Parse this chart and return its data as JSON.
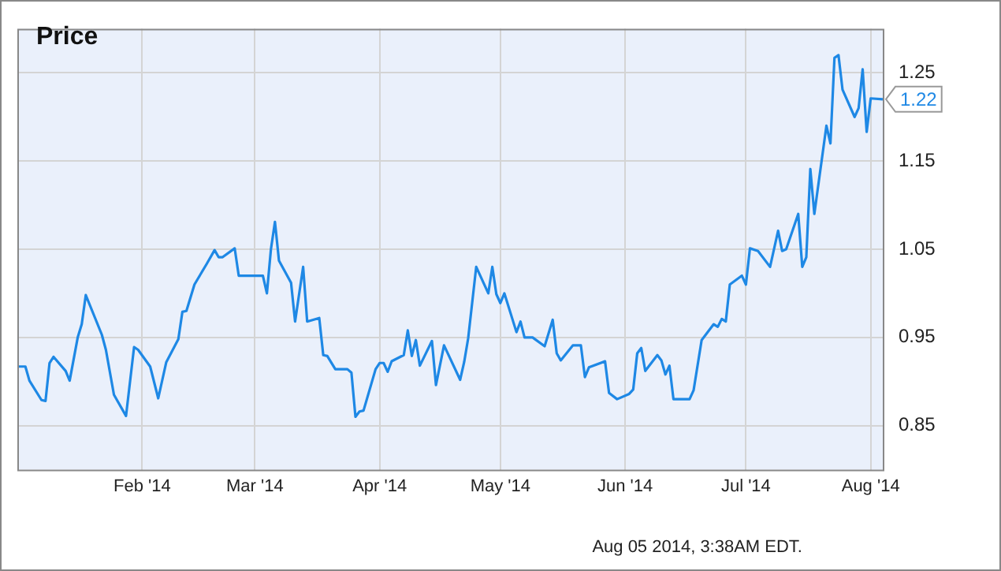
{
  "chart_data": {
    "type": "line",
    "title": "Price",
    "annotations": [
      "Aug 05 2014, 3:38AM EDT."
    ],
    "x": [
      "2014-01-01",
      "2014-01-03",
      "2014-01-04",
      "2014-01-07",
      "2014-01-08",
      "2014-01-09",
      "2014-01-10",
      "2014-01-13",
      "2014-01-14",
      "2014-01-16",
      "2014-01-17",
      "2014-01-18",
      "2014-01-22",
      "2014-01-23",
      "2014-01-25",
      "2014-01-28",
      "2014-01-30",
      "2014-01-31",
      "2014-02-03",
      "2014-02-05",
      "2014-02-07",
      "2014-02-10",
      "2014-02-11",
      "2014-02-12",
      "2014-02-14",
      "2014-02-17",
      "2014-02-19",
      "2014-02-20",
      "2014-02-21",
      "2014-02-24",
      "2014-02-25",
      "2014-03-03",
      "2014-03-04",
      "2014-03-05",
      "2014-03-06",
      "2014-03-07",
      "2014-03-10",
      "2014-03-11",
      "2014-03-13",
      "2014-03-14",
      "2014-03-17",
      "2014-03-18",
      "2014-03-19",
      "2014-03-21",
      "2014-03-24",
      "2014-03-25",
      "2014-03-26",
      "2014-03-27",
      "2014-03-28",
      "2014-03-31",
      "2014-04-01",
      "2014-04-02",
      "2014-04-03",
      "2014-04-04",
      "2014-04-07",
      "2014-04-08",
      "2014-04-09",
      "2014-04-10",
      "2014-04-11",
      "2014-04-14",
      "2014-04-15",
      "2014-04-17",
      "2014-04-21",
      "2014-04-22",
      "2014-04-23",
      "2014-04-25",
      "2014-04-28",
      "2014-04-29",
      "2014-04-30",
      "2014-05-01",
      "2014-05-02",
      "2014-05-05",
      "2014-05-06",
      "2014-05-07",
      "2014-05-09",
      "2014-05-12",
      "2014-05-14",
      "2014-05-15",
      "2014-05-16",
      "2014-05-19",
      "2014-05-21",
      "2014-05-22",
      "2014-05-23",
      "2014-05-27",
      "2014-05-28",
      "2014-05-30",
      "2014-06-02",
      "2014-06-03",
      "2014-06-04",
      "2014-06-05",
      "2014-06-06",
      "2014-06-09",
      "2014-06-10",
      "2014-06-11",
      "2014-06-12",
      "2014-06-13",
      "2014-06-17",
      "2014-06-18",
      "2014-06-20",
      "2014-06-23",
      "2014-06-24",
      "2014-06-25",
      "2014-06-26",
      "2014-06-27",
      "2014-06-30",
      "2014-07-01",
      "2014-07-02",
      "2014-07-04",
      "2014-07-07",
      "2014-07-09",
      "2014-07-10",
      "2014-07-11",
      "2014-07-14",
      "2014-07-15",
      "2014-07-16",
      "2014-07-17",
      "2014-07-18",
      "2014-07-21",
      "2014-07-22",
      "2014-07-23",
      "2014-07-24",
      "2014-07-25",
      "2014-07-28",
      "2014-07-29",
      "2014-07-30",
      "2014-07-31",
      "2014-08-01",
      "2014-08-04"
    ],
    "series": [
      {
        "color": "#1e88e5",
        "values": [
          0.917,
          0.917,
          0.901,
          0.879,
          0.878,
          0.921,
          0.928,
          0.912,
          0.901,
          0.95,
          0.965,
          0.998,
          0.953,
          0.936,
          0.885,
          0.861,
          0.939,
          0.936,
          0.917,
          0.881,
          0.922,
          0.948,
          0.979,
          0.98,
          1.01,
          1.033,
          1.049,
          1.041,
          1.041,
          1.051,
          1.02,
          1.02,
          1.0,
          1.05,
          1.081,
          1.037,
          1.012,
          0.968,
          1.03,
          0.968,
          0.972,
          0.93,
          0.929,
          0.914,
          0.914,
          0.91,
          0.86,
          0.866,
          0.867,
          0.914,
          0.921,
          0.921,
          0.911,
          0.923,
          0.93,
          0.958,
          0.929,
          0.947,
          0.918,
          0.946,
          0.896,
          0.941,
          0.902,
          0.922,
          0.949,
          1.03,
          1.0,
          1.03,
          0.999,
          0.989,
          1.0,
          0.956,
          0.968,
          0.95,
          0.95,
          0.94,
          0.97,
          0.932,
          0.924,
          0.941,
          0.941,
          0.905,
          0.916,
          0.923,
          0.887,
          0.88,
          0.886,
          0.891,
          0.932,
          0.938,
          0.912,
          0.93,
          0.924,
          0.908,
          0.918,
          0.88,
          0.88,
          0.89,
          0.947,
          0.965,
          0.962,
          0.971,
          0.968,
          1.01,
          1.02,
          1.01,
          1.051,
          1.048,
          1.03,
          1.071,
          1.048,
          1.05,
          1.09,
          1.03,
          1.041,
          1.141,
          1.09,
          1.19,
          1.17,
          1.267,
          1.27,
          1.231,
          1.2,
          1.21,
          1.254,
          1.183,
          1.221,
          1.22
        ],
        "value_labels": [
          null,
          null,
          null,
          null,
          null,
          null,
          null,
          null,
          null,
          null,
          null,
          null,
          null,
          null,
          null,
          null,
          null,
          null,
          null,
          null,
          null,
          null,
          null,
          null,
          null,
          null,
          null,
          null,
          null,
          null,
          null,
          null,
          null,
          null,
          null,
          null,
          null,
          null,
          null,
          null,
          null,
          null,
          null,
          null,
          null,
          null,
          null,
          null,
          null,
          null,
          null,
          null,
          null,
          null,
          null,
          null,
          null,
          null,
          null,
          null,
          null,
          null,
          null,
          null,
          null,
          null,
          null,
          null,
          null,
          null,
          null,
          null,
          null,
          null,
          null,
          null,
          null,
          null,
          null,
          null,
          null,
          null,
          null,
          null,
          null,
          null,
          null,
          null,
          null,
          null,
          null,
          null,
          null,
          null,
          null,
          null,
          null,
          null,
          null,
          null,
          null,
          null,
          null,
          null,
          null,
          null,
          null,
          null,
          null,
          null,
          null,
          null,
          null,
          null,
          null,
          null,
          null,
          null,
          null,
          null,
          null,
          null,
          null,
          null,
          null,
          null,
          null,
          "1.22"
        ]
      }
    ],
    "xlim": [
      "2014-01-01",
      "2014-08-04"
    ],
    "xticks": [
      {
        "value": "2014-02-01",
        "label": "Feb '14"
      },
      {
        "value": "2014-03-01",
        "label": "Mar '14"
      },
      {
        "value": "2014-04-01",
        "label": "Apr '14"
      },
      {
        "value": "2014-05-01",
        "label": "May '14"
      },
      {
        "value": "2014-06-01",
        "label": "Jun '14"
      },
      {
        "value": "2014-07-01",
        "label": "Jul '14"
      },
      {
        "value": "2014-08-01",
        "label": "Aug '14"
      }
    ],
    "ylim": [
      0.8,
      1.3
    ],
    "yticks": [
      0.85,
      0.95,
      1.05,
      1.15,
      1.25
    ],
    "grid": true,
    "marker": "none",
    "line_style": "solid"
  }
}
